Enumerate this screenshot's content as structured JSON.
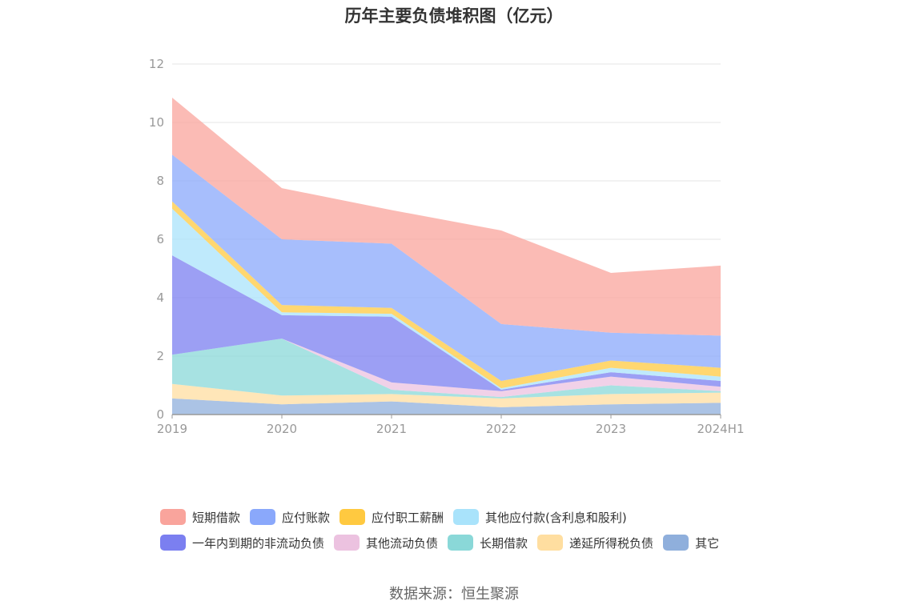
{
  "title": "历年主要负债堆积图（亿元）",
  "source": "数据来源：恒生聚源",
  "chart_data": {
    "type": "area",
    "stacked": true,
    "title": "历年主要负债堆积图（亿元）",
    "categories": [
      "2019",
      "2020",
      "2021",
      "2022",
      "2023",
      "2024H1"
    ],
    "ylim": [
      0,
      12
    ],
    "yticks": [
      "0",
      "2",
      "4",
      "6",
      "8",
      "10",
      "12"
    ],
    "grid": true,
    "legend_position": "bottom",
    "series": [
      {
        "name": "其它",
        "color": "#8fafdc",
        "values": [
          0.55,
          0.35,
          0.45,
          0.25,
          0.35,
          0.4
        ]
      },
      {
        "name": "递延所得税负债",
        "color": "#ffdea0",
        "values": [
          0.5,
          0.3,
          0.25,
          0.3,
          0.35,
          0.35
        ]
      },
      {
        "name": "长期借款",
        "color": "#8ad8d8",
        "values": [
          1.0,
          1.95,
          0.15,
          0.05,
          0.3,
          0.05
        ]
      },
      {
        "name": "其他流动负债",
        "color": "#ecc2e0",
        "values": [
          0.0,
          0.0,
          0.25,
          0.2,
          0.3,
          0.15
        ]
      },
      {
        "name": "一年内到期的非流动负债",
        "color": "#7b7ff0",
        "values": [
          3.4,
          0.8,
          2.25,
          0.05,
          0.15,
          0.2
        ]
      },
      {
        "name": "其他应付款(含利息和股利)",
        "color": "#a9e3fb",
        "values": [
          1.6,
          0.1,
          0.1,
          0.05,
          0.15,
          0.15
        ]
      },
      {
        "name": "应付职工薪酬",
        "color": "#ffc940",
        "values": [
          0.25,
          0.25,
          0.2,
          0.25,
          0.25,
          0.3
        ]
      },
      {
        "name": "应付账款",
        "color": "#8aa8fb",
        "values": [
          1.6,
          2.25,
          2.2,
          1.95,
          0.95,
          1.1
        ]
      },
      {
        "name": "短期借款",
        "color": "#f9a49c",
        "values": [
          1.95,
          1.75,
          1.15,
          3.2,
          2.05,
          2.4
        ]
      }
    ]
  },
  "legend": [
    [
      {
        "label": "短期借款",
        "color": "#f9a49c"
      },
      {
        "label": "应付账款",
        "color": "#8aa8fb"
      },
      {
        "label": "应付职工薪酬",
        "color": "#ffc940"
      },
      {
        "label": "其他应付款(含利息和股利)",
        "color": "#a9e3fb"
      }
    ],
    [
      {
        "label": "一年内到期的非流动负债",
        "color": "#7b7ff0"
      },
      {
        "label": "其他流动负债",
        "color": "#ecc2e0"
      },
      {
        "label": "长期借款",
        "color": "#8ad8d8"
      },
      {
        "label": "递延所得税负债",
        "color": "#ffdea0"
      },
      {
        "label": "其它",
        "color": "#8fafdc"
      }
    ]
  ]
}
